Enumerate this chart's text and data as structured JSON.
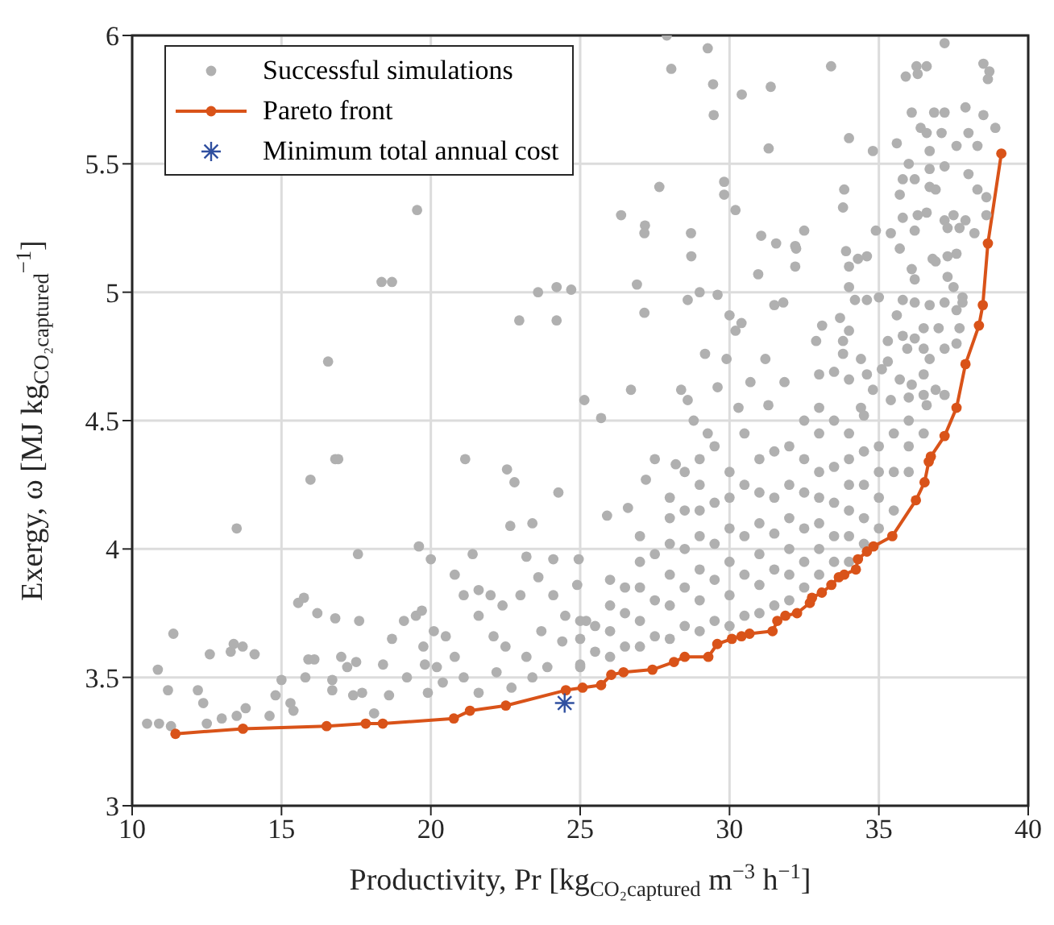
{
  "chart_data": {
    "type": "scatter",
    "xlabel": "Productivity, Pr [kg$_{CO₂captured}$ m$^{−3}$ h$^{−1}$]",
    "ylabel": "Exergy, ω [MJ kg$_{CO₂captured}$$^{−1}$]",
    "xlim": [
      10,
      40
    ],
    "ylim": [
      3,
      6
    ],
    "xticks": [
      10,
      15,
      20,
      25,
      30,
      35,
      40
    ],
    "yticks": [
      3,
      3.5,
      4,
      4.5,
      5,
      5.5,
      6
    ],
    "grid": true,
    "legend": "top left",
    "series": [
      {
        "name": "Successful simulations",
        "type": "scatter",
        "marker": "circle",
        "color": "#b0b0b0",
        "x": [
          10.5,
          10.9,
          11.3,
          10.86,
          11.38,
          11.2,
          12.2,
          12.6,
          13.3,
          13.7,
          14.1,
          13.4,
          12.38,
          12.5,
          13.0,
          13.5,
          13.8,
          14.6,
          14.8,
          15.0,
          15.3,
          15.56,
          15.75,
          16.2,
          16.8,
          15.4,
          15.9,
          16.1,
          15.8,
          16.7,
          16.7,
          17.0,
          17.2,
          17.4,
          17.5,
          17.6,
          17.56,
          17.7,
          18.1,
          18.4,
          18.7,
          18.6,
          19.1,
          19.2,
          19.5,
          19.6,
          20.0,
          19.7,
          19.75,
          19.8,
          19.9,
          20.1,
          20.2,
          20.4,
          20.5,
          20.8,
          20.8,
          21.1,
          21.4,
          21.1,
          21.6,
          21.6,
          21.6,
          22.0,
          22.1,
          22.2,
          22.4,
          22.5,
          22.7,
          23.0,
          23.2,
          23.2,
          23.4,
          23.6,
          23.7,
          23.9,
          24.1,
          24.1,
          24.4,
          24.5,
          24.9,
          24.95,
          25.0,
          25.2,
          13.5,
          16.56,
          16.8,
          16.9,
          15.97,
          21.15,
          22.55,
          22.8,
          24.27,
          22.66,
          23.4,
          25.9,
          26.6,
          27.5,
          28.2,
          27.2,
          19.54,
          18.35,
          18.7,
          23.59,
          24.21,
          24.7,
          22.96,
          24.21,
          26.9,
          27.15,
          28.6,
          29.0,
          29.6,
          30.0,
          30.4,
          31.5,
          31.8,
          30.2,
          29.18,
          29.9,
          31.2,
          30.7,
          31.84,
          26.7,
          25.14,
          25.7,
          28.38,
          28.6,
          29.6,
          30.3,
          31.3,
          28.8,
          29.27,
          27.9,
          29.27,
          28.05,
          29.45,
          30.41,
          31.38,
          29.47,
          31.31,
          27.65,
          29.82,
          29.82,
          30.2,
          26.37,
          27.17,
          27.15,
          28.71,
          28.72,
          31.06,
          31.56,
          32.23,
          30.96,
          33.4,
          36.26,
          36.6,
          37.2,
          38.5,
          38.7,
          38.65,
          35.9,
          36.3,
          36.1,
          36.85,
          37.2,
          37.9,
          38.5,
          38.9,
          34.0,
          34.8,
          35.6,
          36.4,
          36.6,
          36.7,
          37.1,
          37.6,
          38.0,
          38.3,
          36.0,
          36.7,
          37.2,
          38.0,
          35.8,
          36.2,
          33.84,
          35.7,
          36.7,
          36.9,
          38.3,
          38.6,
          33.8,
          35.8,
          36.3,
          36.6,
          37.2,
          37.5,
          37.9,
          38.6,
          32.5,
          34.9,
          35.4,
          36.2,
          37.3,
          37.7,
          38.2,
          32.2,
          35.7,
          37.6,
          32.2,
          33.9,
          34.3,
          34.6,
          34.0,
          36.1,
          36.8,
          36.9,
          37.3,
          36.2,
          37.3,
          37.5,
          37.8,
          34.0,
          34.2,
          34.6,
          35.0,
          35.8,
          36.2,
          36.7,
          37.2,
          37.8,
          37.6,
          33.7,
          35.6,
          37.7,
          33.1,
          32.9,
          34.0,
          33.8,
          35.3,
          35.8,
          36.2,
          36.5,
          37.0,
          35.95,
          36.5,
          36.7,
          37.2,
          37.6,
          33.8,
          34.4,
          35.3,
          33.0,
          33.5,
          34.0,
          34.6,
          35.1,
          35.7,
          36.1,
          36.5,
          36.9,
          37.2,
          34.8,
          35.4,
          36.0,
          36.6,
          34.4,
          25,
          25,
          25,
          25.5,
          25.5,
          26,
          26,
          26,
          26,
          26.5,
          26.5,
          26.5,
          27,
          27,
          27,
          27,
          27,
          27.5,
          27.5,
          27.5,
          28,
          28,
          28,
          28,
          28,
          28,
          28.5,
          28.5,
          28.5,
          28.5,
          28.5,
          29,
          29,
          29,
          29,
          29,
          29,
          29,
          29.5,
          29.5,
          29.5,
          29.5,
          29.5,
          30,
          30,
          30,
          30,
          30,
          30,
          30.5,
          30.5,
          30.5,
          30.5,
          30.5,
          31,
          31,
          31,
          31,
          31,
          31,
          31.5,
          31.5,
          31.5,
          31.5,
          31.5,
          32,
          32,
          32,
          32,
          32,
          32,
          32.5,
          32.5,
          32.5,
          32.5,
          32.5,
          32.5,
          33,
          33,
          33,
          33,
          33,
          33,
          33,
          33.5,
          33.5,
          33.5,
          33.5,
          33.5,
          34,
          34,
          34,
          34,
          34,
          34,
          34.5,
          34.5,
          34.5,
          34.5,
          34.5,
          35,
          35,
          35,
          35,
          35.5,
          35.5,
          35.5,
          36,
          36,
          36,
          36.5,
          36.5
        ],
        "values": [
          3.32,
          3.32,
          3.31,
          3.53,
          3.67,
          3.45,
          3.45,
          3.59,
          3.6,
          3.62,
          3.59,
          3.63,
          3.4,
          3.32,
          3.34,
          3.35,
          3.38,
          3.35,
          3.43,
          3.49,
          3.4,
          3.79,
          3.81,
          3.75,
          3.73,
          3.37,
          3.57,
          3.57,
          3.5,
          3.49,
          3.45,
          3.58,
          3.54,
          3.43,
          3.56,
          3.72,
          3.98,
          3.44,
          3.36,
          3.55,
          3.65,
          3.43,
          3.72,
          3.5,
          3.74,
          4.01,
          3.96,
          3.76,
          3.62,
          3.55,
          3.44,
          3.68,
          3.54,
          3.48,
          3.66,
          3.9,
          3.58,
          3.82,
          3.98,
          3.5,
          3.84,
          3.74,
          3.44,
          3.82,
          3.66,
          3.52,
          3.78,
          3.62,
          3.46,
          3.82,
          3.97,
          3.58,
          3.5,
          3.89,
          3.68,
          3.54,
          3.96,
          3.82,
          3.64,
          3.74,
          3.86,
          3.96,
          3.54,
          3.72,
          4.08,
          4.73,
          4.35,
          4.35,
          4.27,
          4.35,
          4.31,
          4.26,
          4.22,
          4.09,
          4.1,
          4.13,
          4.16,
          4.35,
          4.33,
          4.27,
          5.32,
          5.04,
          5.04,
          5.0,
          5.02,
          5.01,
          4.89,
          4.89,
          5.03,
          4.92,
          4.97,
          5.0,
          4.99,
          4.91,
          4.88,
          4.95,
          4.96,
          4.85,
          4.76,
          4.74,
          4.74,
          4.65,
          4.65,
          4.62,
          4.58,
          4.51,
          4.62,
          4.58,
          4.63,
          4.55,
          4.56,
          4.5,
          4.45,
          6.0,
          5.95,
          5.87,
          5.81,
          5.77,
          5.8,
          5.69,
          5.56,
          5.41,
          5.43,
          5.38,
          5.32,
          5.3,
          5.26,
          5.23,
          5.23,
          5.14,
          5.22,
          5.19,
          5.17,
          5.07,
          5.88,
          5.88,
          5.88,
          5.97,
          5.89,
          5.86,
          5.83,
          5.84,
          5.85,
          5.7,
          5.7,
          5.7,
          5.72,
          5.69,
          5.64,
          5.6,
          5.55,
          5.58,
          5.64,
          5.62,
          5.55,
          5.62,
          5.57,
          5.62,
          5.57,
          5.5,
          5.48,
          5.49,
          5.46,
          5.44,
          5.44,
          5.4,
          5.38,
          5.41,
          5.4,
          5.4,
          5.37,
          5.33,
          5.29,
          5.3,
          5.31,
          5.28,
          5.3,
          5.28,
          5.3,
          5.24,
          5.24,
          5.23,
          5.24,
          5.25,
          5.25,
          5.23,
          5.18,
          5.17,
          5.15,
          5.1,
          5.16,
          5.13,
          5.14,
          5.1,
          5.09,
          5.13,
          5.12,
          5.14,
          5.05,
          5.06,
          5.02,
          4.98,
          5.02,
          4.97,
          4.97,
          4.98,
          4.97,
          4.96,
          4.95,
          4.96,
          4.96,
          4.93,
          4.9,
          4.91,
          4.86,
          4.87,
          4.81,
          4.85,
          4.81,
          4.81,
          4.83,
          4.82,
          4.86,
          4.86,
          4.78,
          4.78,
          4.74,
          4.78,
          4.8,
          4.76,
          4.74,
          4.73,
          4.68,
          4.69,
          4.66,
          4.68,
          4.7,
          4.66,
          4.64,
          4.68,
          4.62,
          4.6,
          4.62,
          4.58,
          4.59,
          4.56,
          4.55,
          3.55,
          3.65,
          3.72,
          3.6,
          3.7,
          3.58,
          3.68,
          3.78,
          3.88,
          3.62,
          3.75,
          3.85,
          3.62,
          3.72,
          3.85,
          3.95,
          4.05,
          3.66,
          3.8,
          3.98,
          3.65,
          3.78,
          3.9,
          4.02,
          4.12,
          4.2,
          3.7,
          3.85,
          4.0,
          4.15,
          4.3,
          3.68,
          3.8,
          3.92,
          4.05,
          4.15,
          4.25,
          4.35,
          3.72,
          3.88,
          4.02,
          4.18,
          4.4,
          3.7,
          3.82,
          3.95,
          4.08,
          4.2,
          4.3,
          3.74,
          3.9,
          4.05,
          4.25,
          4.45,
          3.75,
          3.86,
          3.98,
          4.1,
          4.22,
          4.35,
          3.78,
          3.92,
          4.06,
          4.2,
          4.38,
          3.8,
          3.9,
          4.0,
          4.12,
          4.25,
          4.4,
          3.85,
          3.95,
          4.08,
          4.22,
          4.35,
          4.5,
          3.9,
          4.0,
          4.1,
          4.2,
          4.3,
          4.45,
          4.55,
          3.95,
          4.05,
          4.18,
          4.32,
          4.5,
          3.95,
          4.05,
          4.15,
          4.25,
          4.35,
          4.45,
          4.02,
          4.12,
          4.25,
          4.38,
          4.52,
          4.08,
          4.2,
          4.3,
          4.4,
          4.15,
          4.3,
          4.45,
          4.3,
          4.4,
          4.5,
          4.45,
          4.6
        ]
      },
      {
        "name": "Pareto front",
        "type": "line",
        "marker": "circle",
        "line_style": "solid",
        "color": "#d95319",
        "x": [
          11.45,
          13.71,
          16.51,
          17.82,
          18.39,
          20.77,
          21.31,
          22.51,
          24.52,
          25.08,
          25.7,
          26.04,
          26.45,
          27.42,
          28.14,
          28.5,
          29.29,
          29.59,
          30.08,
          30.4,
          30.67,
          31.44,
          31.6,
          31.87,
          32.26,
          32.69,
          32.76,
          33.09,
          33.41,
          33.66,
          33.84,
          34.23,
          34.3,
          34.6,
          34.82,
          35.45,
          36.24,
          36.53,
          36.67,
          36.74,
          37.2,
          37.6,
          37.9,
          38.35,
          38.48,
          38.65,
          39.1
        ],
        "values": [
          3.28,
          3.3,
          3.31,
          3.32,
          3.32,
          3.34,
          3.37,
          3.39,
          3.45,
          3.46,
          3.47,
          3.51,
          3.52,
          3.53,
          3.56,
          3.58,
          3.58,
          3.63,
          3.65,
          3.66,
          3.67,
          3.68,
          3.72,
          3.74,
          3.75,
          3.79,
          3.81,
          3.83,
          3.86,
          3.89,
          3.9,
          3.92,
          3.96,
          3.99,
          4.01,
          4.05,
          4.19,
          4.26,
          4.34,
          4.36,
          4.44,
          4.55,
          4.72,
          4.87,
          4.95,
          5.19,
          5.54
        ]
      },
      {
        "name": "Minimum total annual cost",
        "type": "scatter",
        "marker": "cross",
        "color": "#3050a0",
        "x": [
          24.48
        ],
        "values": [
          3.4
        ]
      }
    ]
  }
}
